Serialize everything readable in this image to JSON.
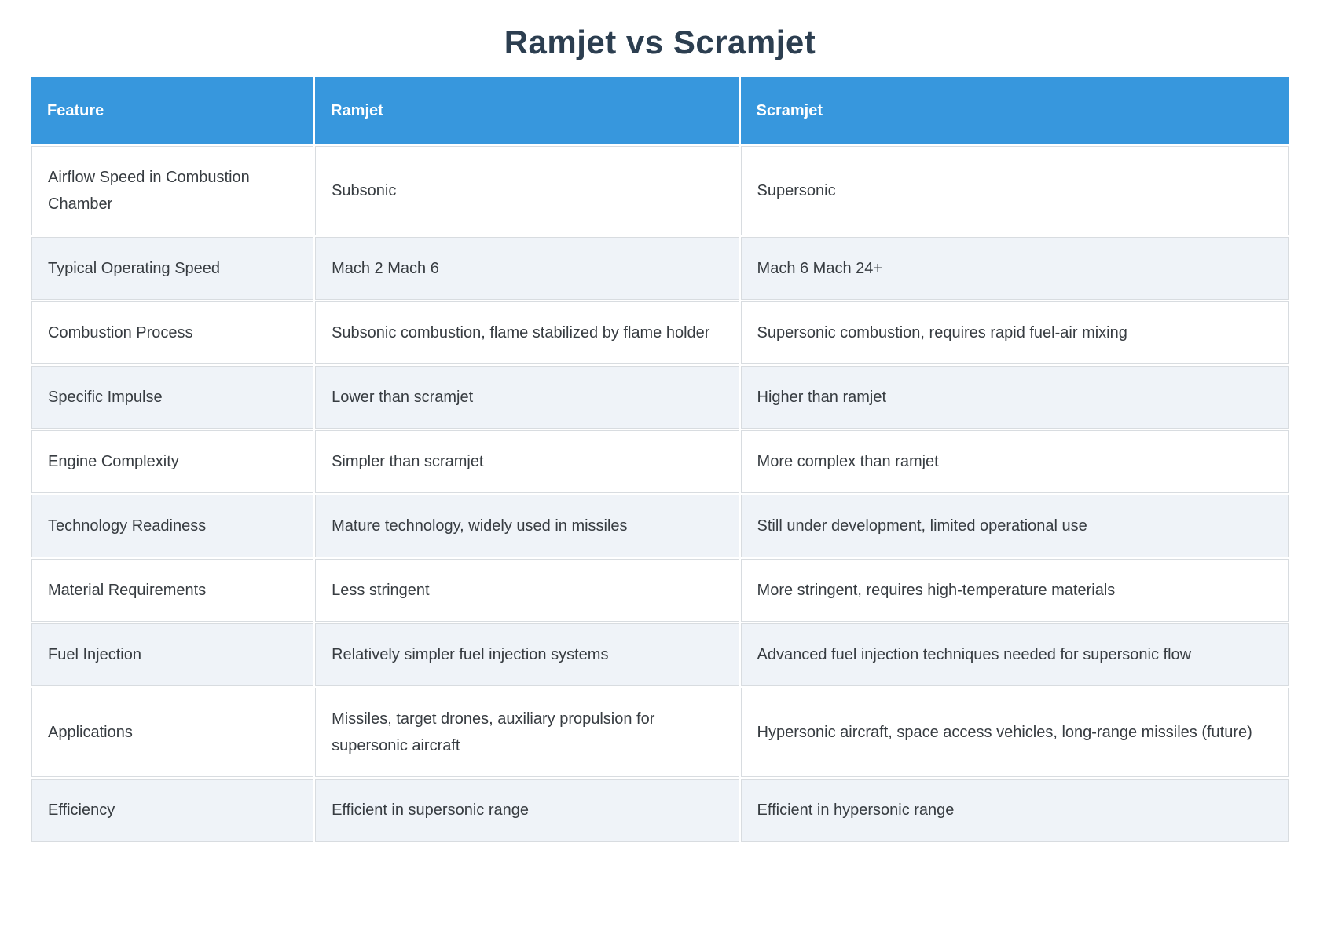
{
  "page": {
    "title": "Ramjet vs Scramjet"
  },
  "colors": {
    "header_bg": "#3797dd",
    "header_text": "#ffffff",
    "row_bg": "#ffffff",
    "row_alt_bg": "#eff3f8",
    "cell_border": "#d8dce0",
    "title_text": "#2c3e50",
    "body_text": "#373c41"
  },
  "table": {
    "columns": [
      "Feature",
      "Ramjet",
      "Scramjet"
    ],
    "rows": [
      [
        "Airflow Speed in Combustion Chamber",
        "Subsonic",
        "Supersonic"
      ],
      [
        "Typical Operating Speed",
        "Mach 2 Mach 6",
        "Mach 6 Mach 24+"
      ],
      [
        "Combustion Process",
        "Subsonic combustion, flame stabilized by flame holder",
        "Supersonic combustion, requires rapid fuel-air mixing"
      ],
      [
        "Specific Impulse",
        "Lower than scramjet",
        "Higher than ramjet"
      ],
      [
        "Engine Complexity",
        "Simpler than scramjet",
        "More complex than ramjet"
      ],
      [
        "Technology Readiness",
        "Mature technology, widely used in missiles",
        "Still under development, limited operational use"
      ],
      [
        "Material Requirements",
        "Less stringent",
        "More stringent, requires high-temperature materials"
      ],
      [
        "Fuel Injection",
        "Relatively simpler fuel injection systems",
        "Advanced fuel injection techniques needed for supersonic flow"
      ],
      [
        "Applications",
        "Missiles, target drones, auxiliary propulsion for supersonic aircraft",
        "Hypersonic aircraft, space access vehicles, long-range missiles (future)"
      ],
      [
        "Efficiency",
        "Efficient in supersonic range",
        "Efficient in hypersonic range"
      ]
    ]
  }
}
